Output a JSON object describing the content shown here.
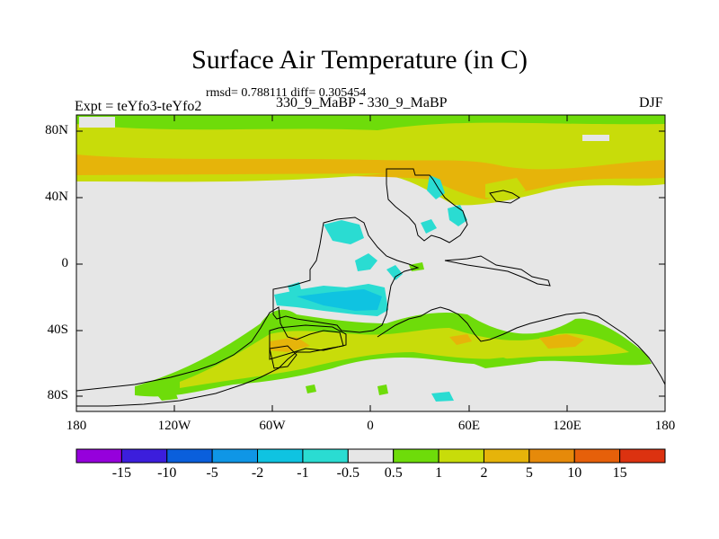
{
  "title": "Surface Air Temperature (in C)",
  "stats": "rmsd= 0.788111 diff= 0.305454",
  "experiment": "Expt = teYfo3-teYfo2",
  "runs": "330_9_MaBP - 330_9_MaBP",
  "season": "DJF",
  "axes": {
    "lat_labels": [
      "80N",
      "40N",
      "0",
      "40S",
      "80S"
    ],
    "lon_labels": [
      "180",
      "120W",
      "60W",
      "0",
      "60E",
      "120E",
      "180"
    ]
  },
  "colorbar": {
    "labels": [
      "-15",
      "-10",
      "-5",
      "-2",
      "-1",
      "-0.5",
      "0.5",
      "1",
      "2",
      "5",
      "10",
      "15"
    ],
    "colors": [
      "#9600dc",
      "#3c1edc",
      "#0a5fdc",
      "#0f96e6",
      "#0fc3e1",
      "#2adcd2",
      "#e6e6e6",
      "#6edc0a",
      "#c8dc0a",
      "#e6b40a",
      "#e68a0a",
      "#e6600a",
      "#dc3210"
    ]
  }
}
